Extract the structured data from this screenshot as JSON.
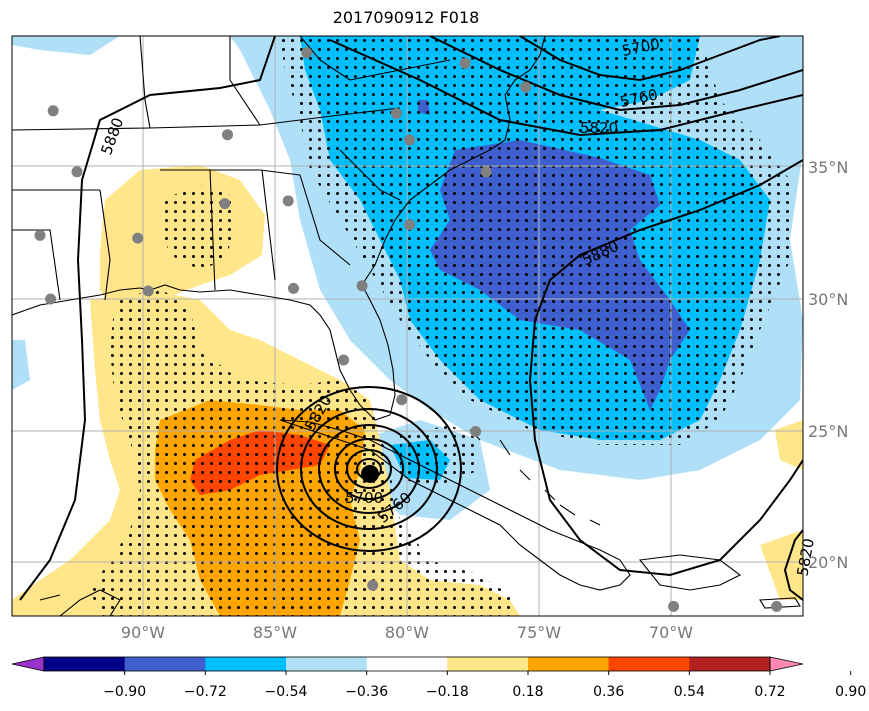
{
  "title": "2017090912 F018",
  "map": {
    "lat_labels": [
      {
        "text": "35°N",
        "lat": 35
      },
      {
        "text": "30°N",
        "lat": 30
      },
      {
        "text": "25°N",
        "lat": 25
      },
      {
        "text": "20°N",
        "lat": 20
      }
    ],
    "lon_labels": [
      {
        "text": "90°W",
        "lon": -90
      },
      {
        "text": "85°W",
        "lon": -85
      },
      {
        "text": "80°W",
        "lon": -80
      },
      {
        "text": "75°W",
        "lon": -75
      },
      {
        "text": "70°W",
        "lon": -70
      }
    ],
    "contour_labels": [
      "5700",
      "5760",
      "5820",
      "5880",
      "5880",
      "5820",
      "5820",
      "5700",
      "5760"
    ],
    "storm_center": {
      "lat": 23.4,
      "lon": -81.4
    },
    "stations": [
      {
        "lat": 39.3,
        "lon": -83.8
      },
      {
        "lat": 38.9,
        "lon": -77.8
      },
      {
        "lat": 38.0,
        "lon": -75.5
      },
      {
        "lat": 37.1,
        "lon": -93.4
      },
      {
        "lat": 37.0,
        "lon": -80.4
      },
      {
        "lat": 36.2,
        "lon": -86.8
      },
      {
        "lat": 36.0,
        "lon": -79.9
      },
      {
        "lat": 34.8,
        "lon": -77.0
      },
      {
        "lat": 34.8,
        "lon": -92.5
      },
      {
        "lat": 33.6,
        "lon": -86.9
      },
      {
        "lat": 33.7,
        "lon": -84.5
      },
      {
        "lat": 32.8,
        "lon": -79.9
      },
      {
        "lat": 32.4,
        "lon": -93.9
      },
      {
        "lat": 32.3,
        "lon": -90.2
      },
      {
        "lat": 30.4,
        "lon": -84.3
      },
      {
        "lat": 30.5,
        "lon": -81.7
      },
      {
        "lat": 30.3,
        "lon": -89.8
      },
      {
        "lat": 30.0,
        "lon": -93.5
      },
      {
        "lat": 27.7,
        "lon": -82.4
      },
      {
        "lat": 26.2,
        "lon": -80.2
      },
      {
        "lat": 25.0,
        "lon": -77.4
      },
      {
        "lat": 19.2,
        "lon": -81.3
      },
      {
        "lat": 18.4,
        "lon": -69.9
      },
      {
        "lat": 18.4,
        "lon": -66.0
      }
    ]
  },
  "colorbar": {
    "ticks": [
      "−0.90",
      "−0.72",
      "−0.54",
      "−0.36",
      "−0.18",
      "0.18",
      "0.36",
      "0.54",
      "0.72",
      "0.90"
    ],
    "colors": [
      "#9933cc",
      "#000088",
      "#3f5fcf",
      "#00bfff",
      "#b0e0f8",
      "#ffffff",
      "#ffe68a",
      "#ffa500",
      "#ff4500",
      "#b22222",
      "#ff88b4"
    ]
  },
  "colors": {
    "land_line": "#000000",
    "grid": "#b0b0b0",
    "station": "#808080",
    "light_blue": "#b0e0f8",
    "cyan": "#00bfff",
    "royal_blue": "#3f5fcf",
    "light_yellow": "#ffe68a",
    "orange": "#ffa500",
    "red_orange": "#ff4500"
  }
}
